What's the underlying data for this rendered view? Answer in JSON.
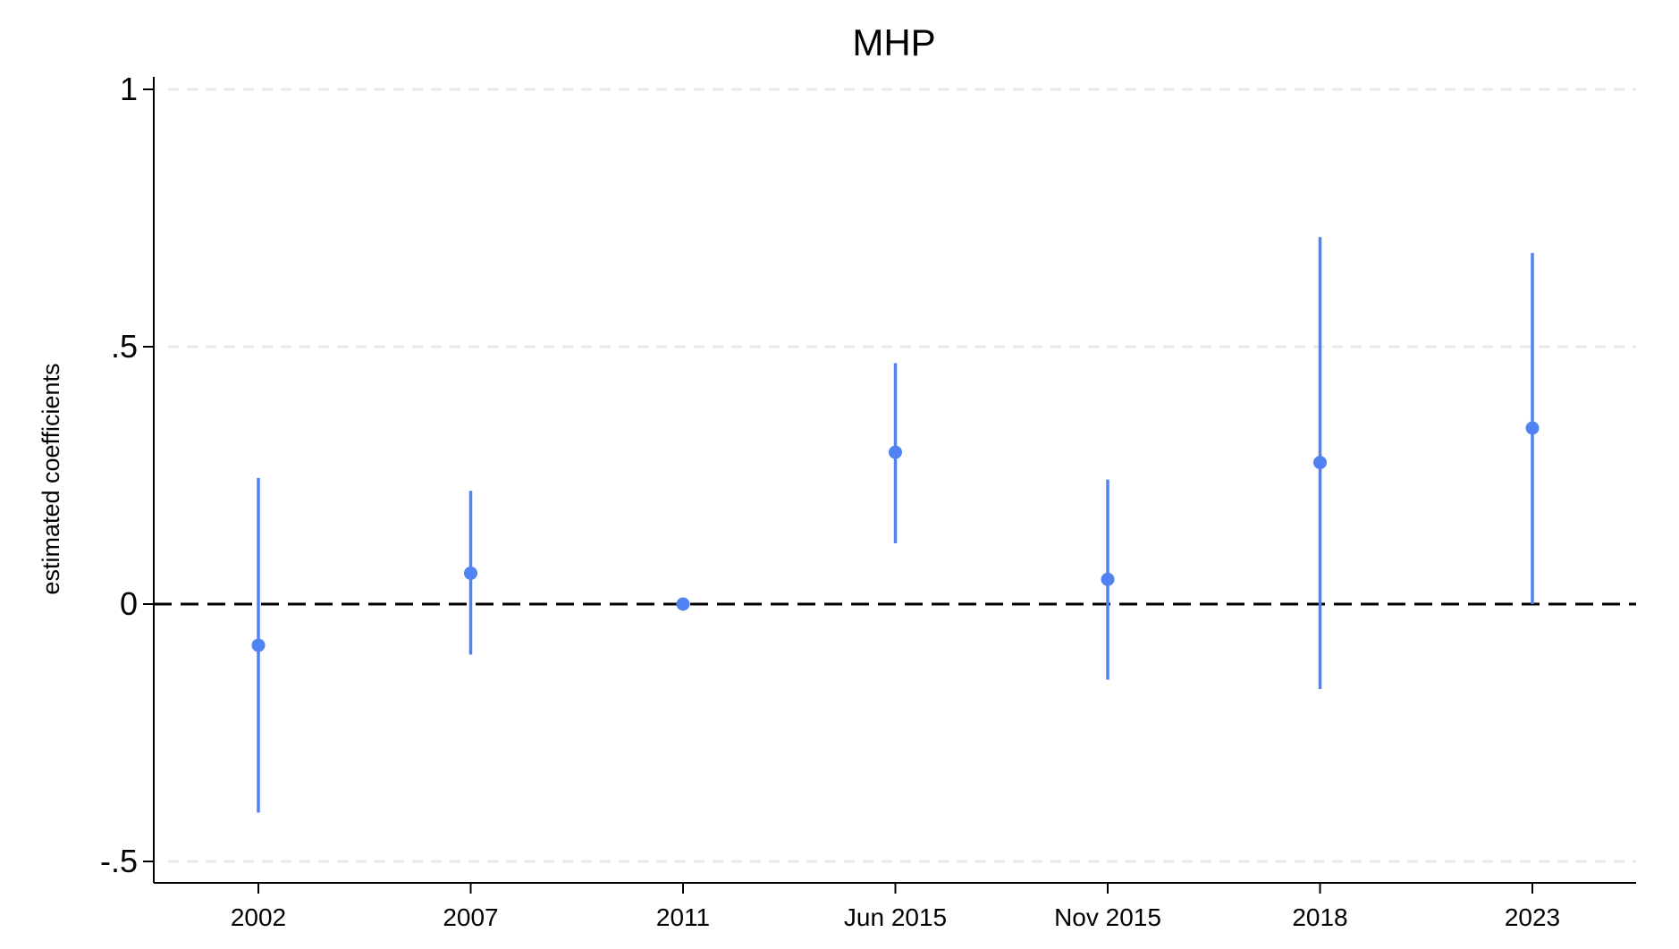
{
  "chart_data": {
    "type": "scatter",
    "title": "MHP",
    "xlabel": "",
    "ylabel": "estimated coefficients",
    "ylim": [
      -0.54,
      1.04
    ],
    "yticks": [
      {
        "value": 1,
        "label": "1"
      },
      {
        "value": 0.5,
        "label": ".5"
      },
      {
        "value": 0,
        "label": "0"
      },
      {
        "value": -0.5,
        "label": "-.5"
      }
    ],
    "grid": true,
    "reference_line": {
      "y": 0,
      "style": "dashed"
    },
    "marker_color": "#5082f2",
    "categories": [
      "2002",
      "2007",
      "2011",
      "Jun 2015",
      "Nov 2015",
      "2018",
      "2023"
    ],
    "series": [
      {
        "estimates": [
          -0.08,
          0.06,
          0.0,
          0.295,
          0.048,
          0.275,
          0.342
        ],
        "ci_low": [
          -0.405,
          -0.098,
          0.0,
          0.118,
          -0.147,
          -0.165,
          0.0
        ],
        "ci_high": [
          0.245,
          0.22,
          0.0,
          0.468,
          0.242,
          0.713,
          0.682
        ]
      }
    ]
  }
}
